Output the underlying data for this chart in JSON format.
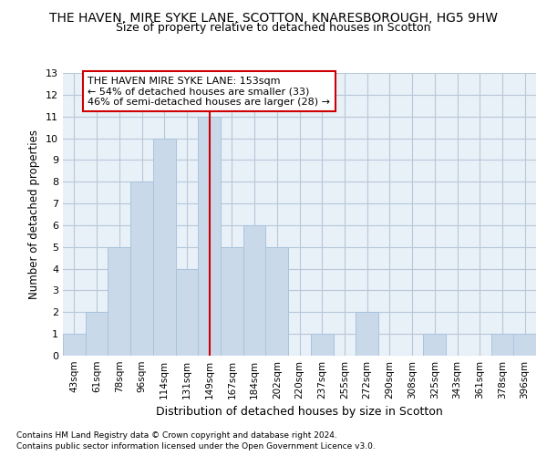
{
  "title": "THE HAVEN, MIRE SYKE LANE, SCOTTON, KNARESBOROUGH, HG5 9HW",
  "subtitle": "Size of property relative to detached houses in Scotton",
  "xlabel": "Distribution of detached houses by size in Scotton",
  "ylabel": "Number of detached properties",
  "categories": [
    "43sqm",
    "61sqm",
    "78sqm",
    "96sqm",
    "114sqm",
    "131sqm",
    "149sqm",
    "167sqm",
    "184sqm",
    "202sqm",
    "220sqm",
    "237sqm",
    "255sqm",
    "272sqm",
    "290sqm",
    "308sqm",
    "325sqm",
    "343sqm",
    "361sqm",
    "378sqm",
    "396sqm"
  ],
  "values": [
    1,
    2,
    5,
    8,
    10,
    4,
    11,
    5,
    6,
    5,
    0,
    1,
    0,
    2,
    0,
    0,
    1,
    0,
    0,
    1,
    1
  ],
  "bar_color": "#c9d9ea",
  "bar_edgecolor": "#aac4dc",
  "vline_index": 6,
  "vline_color": "#cc0000",
  "annotation_text": "THE HAVEN MIRE SYKE LANE: 153sqm\n← 54% of detached houses are smaller (33)\n46% of semi-detached houses are larger (28) →",
  "annotation_box_edgecolor": "#cc0000",
  "ylim": [
    0,
    13
  ],
  "yticks": [
    0,
    1,
    2,
    3,
    4,
    5,
    6,
    7,
    8,
    9,
    10,
    11,
    12,
    13
  ],
  "footer1": "Contains HM Land Registry data © Crown copyright and database right 2024.",
  "footer2": "Contains public sector information licensed under the Open Government Licence v3.0.",
  "bg_color": "#e8f0f8",
  "grid_color": "#b8c8d8",
  "title_fontsize": 10,
  "subtitle_fontsize": 9,
  "xlabel_fontsize": 9
}
